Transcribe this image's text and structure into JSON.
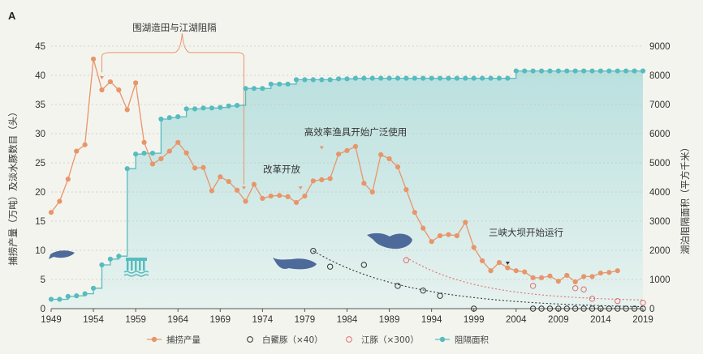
{
  "panel_label": "A",
  "chart_data": {
    "type": "line",
    "xlabel": "",
    "ylabel_left": "捕捞产量（万吨）及淡水豚数目（头）",
    "ylabel_right": "湖泊阻隔面积（平方千米）",
    "xlim": [
      1949,
      2019
    ],
    "ylim_left": [
      0,
      45
    ],
    "ylim_right": [
      0,
      9000
    ],
    "x_ticks": [
      1949,
      1954,
      1959,
      1964,
      1969,
      1974,
      1979,
      1984,
      1989,
      1994,
      1999,
      2004,
      2009,
      2014,
      2019
    ],
    "y_ticks_left": [
      0,
      5,
      10,
      15,
      20,
      25,
      30,
      35,
      40,
      45
    ],
    "y_ticks_right": [
      0,
      1000,
      2000,
      3000,
      4000,
      5000,
      6000,
      7000,
      8000,
      9000
    ],
    "series": [
      {
        "name": "捕捞产量",
        "axis": "left",
        "color": "#e8956a",
        "x": [
          1949,
          1950,
          1951,
          1952,
          1953,
          1954,
          1955,
          1956,
          1957,
          1958,
          1959,
          1960,
          1961,
          1962,
          1963,
          1964,
          1965,
          1966,
          1967,
          1968,
          1969,
          1970,
          1971,
          1972,
          1973,
          1974,
          1975,
          1976,
          1977,
          1978,
          1979,
          1980,
          1981,
          1982,
          1983,
          1984,
          1985,
          1986,
          1987,
          1988,
          1989,
          1990,
          1991,
          1992,
          1993,
          1994,
          1995,
          1996,
          1997,
          1998,
          1999,
          2000,
          2001,
          2002,
          2003,
          2004,
          2005,
          2006,
          2007,
          2008,
          2009,
          2010,
          2011,
          2012,
          2013,
          2014,
          2015,
          2016
        ],
        "y": [
          16.5,
          18.4,
          22.2,
          27.0,
          28.1,
          42.8,
          37.5,
          38.9,
          37.5,
          34.1,
          38.7,
          28.5,
          24.8,
          25.7,
          27.0,
          28.5,
          26.7,
          24.1,
          24.2,
          20.2,
          22.6,
          21.8,
          20.3,
          18.4,
          21.3,
          18.9,
          19.3,
          19.4,
          19.2,
          18.2,
          19.3,
          21.9,
          22.1,
          22.3,
          26.5,
          27.1,
          27.8,
          21.5,
          20.0,
          26.4,
          25.7,
          24.3,
          20.4,
          16.5,
          13.8,
          11.5,
          12.5,
          12.7,
          12.5,
          14.8,
          10.5,
          8.2,
          6.5,
          7.9,
          7.0,
          6.5,
          6.3,
          5.3,
          5.3,
          5.6,
          4.7,
          5.7,
          4.6,
          5.5,
          5.5,
          6.1,
          6.2,
          6.5
        ]
      },
      {
        "name": "白鱀豚（×40）",
        "axis": "left",
        "color": "#333333",
        "x": [
          1980,
          1982,
          1986,
          1990,
          1993,
          1995,
          1999,
          2006,
          2007,
          2008,
          2009,
          2010,
          2011,
          2012,
          2013,
          2014,
          2015,
          2016,
          2017,
          2018,
          2019
        ],
        "y": [
          9.9,
          7.2,
          7.5,
          3.9,
          3.1,
          2.2,
          0.0,
          0.0,
          0.0,
          0.0,
          0.0,
          0.0,
          0.0,
          0.0,
          0.0,
          0.0,
          0.0,
          0.0,
          0.0,
          0.0,
          0.0
        ]
      },
      {
        "name": "江豚（×300）",
        "axis": "left",
        "color": "#e07070",
        "x": [
          1991,
          2006,
          2011,
          2012,
          2013,
          2016,
          2019
        ],
        "y": [
          8.3,
          3.9,
          3.5,
          3.3,
          1.7,
          1.3,
          1.0
        ]
      },
      {
        "name": "阻隔面积",
        "axis": "right",
        "color": "#57bcbf",
        "x": [
          1949,
          1950,
          1951,
          1952,
          1953,
          1954,
          1955,
          1956,
          1957,
          1958,
          1959,
          1960,
          1961,
          1962,
          1963,
          1964,
          1965,
          1966,
          1967,
          1968,
          1969,
          1970,
          1971,
          1972,
          1973,
          1974,
          1975,
          1976,
          1977,
          1978,
          1979,
          1980,
          1981,
          1982,
          1983,
          1984,
          1985,
          1986,
          1987,
          1988,
          1989,
          1990,
          1991,
          1992,
          1993,
          1994,
          1995,
          1996,
          1997,
          1998,
          1999,
          2000,
          2001,
          2002,
          2003,
          2004,
          2005,
          2006,
          2007,
          2008,
          2009,
          2010,
          2011,
          2012,
          2013,
          2014,
          2015,
          2016,
          2017,
          2018,
          2019
        ],
        "y": [
          320,
          320,
          420,
          440,
          510,
          700,
          1500,
          1700,
          1800,
          4800,
          5300,
          5330,
          5330,
          6500,
          6550,
          6580,
          6850,
          6850,
          6880,
          6880,
          6900,
          6950,
          6970,
          7550,
          7550,
          7550,
          7700,
          7700,
          7700,
          7850,
          7850,
          7850,
          7850,
          7850,
          7880,
          7880,
          7900,
          7900,
          7900,
          7900,
          7900,
          7900,
          7900,
          7900,
          7900,
          7900,
          7900,
          7900,
          7900,
          7900,
          7900,
          7900,
          7900,
          7900,
          7900,
          8150,
          8150,
          8150,
          8150,
          8150,
          8150,
          8150,
          8150,
          8150,
          8150,
          8150,
          8150,
          8150,
          8150,
          8150,
          8150
        ]
      }
    ],
    "legend": {
      "placement": "bottom",
      "items": [
        {
          "label": "捕捞产量",
          "color": "#e8956a",
          "marker": "filled-circle"
        },
        {
          "label": "白鱀豚（×40）",
          "color": "#333333",
          "marker": "open-circle"
        },
        {
          "label": "江豚（×300）",
          "color": "#e07070",
          "marker": "open-circle"
        },
        {
          "label": "阻隔面积",
          "color": "#57bcbf",
          "marker": "filled-circle"
        }
      ]
    },
    "annotations": {
      "lake_reclamation": "围湖造田与江湖阻隔",
      "reform": "改革开放",
      "efficient_gear": "高效率渔具开始广泛使用",
      "three_gorges": "三峡大坝开始运行"
    }
  }
}
